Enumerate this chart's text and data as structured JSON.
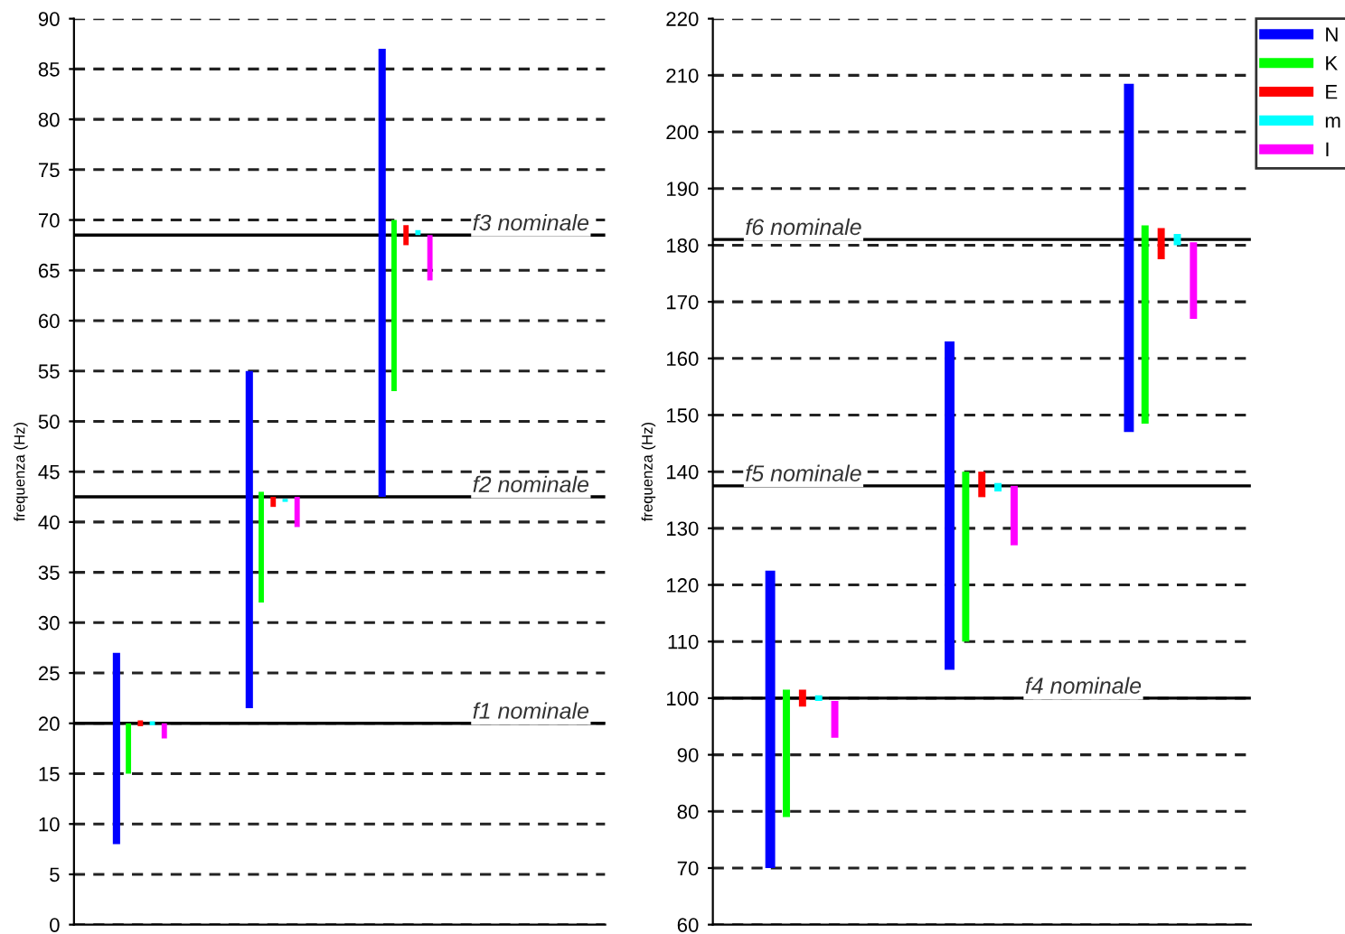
{
  "chart_data": [
    {
      "type": "bar",
      "ylabel": "frequenza (Hz)",
      "categories": [
        null,
        null,
        null,
        null
      ],
      "ylim": [
        0,
        90
      ],
      "yticks": [
        0,
        5,
        10,
        15,
        20,
        25,
        30,
        35,
        40,
        45,
        50,
        55,
        60,
        65,
        70,
        75,
        80,
        85,
        90
      ],
      "grid": "y",
      "tick_labels": "y",
      "legend": false,
      "series": [
        {
          "color": "#0000ff",
          "base": [
            8,
            21.5,
            42.5,
            null
          ],
          "values": [
            19,
            33.5,
            44.5,
            null
          ]
        },
        {
          "color": "#00ff00",
          "base": [
            15,
            32,
            53,
            null
          ],
          "values": [
            5,
            11,
            17,
            null
          ]
        },
        {
          "color": "#ff0000",
          "base": [
            19.7,
            41.5,
            67.5,
            null
          ],
          "values": [
            0.6,
            1,
            2,
            null
          ]
        },
        {
          "color": "#00ffff",
          "base": [
            19.8,
            42,
            68.5,
            null
          ],
          "values": [
            0.4,
            0.3,
            0.5,
            null
          ]
        },
        {
          "color": "#ff00ff",
          "base": [
            18.5,
            39.5,
            64,
            null
          ],
          "values": [
            1.5,
            3,
            4.5,
            null
          ]
        }
      ],
      "ref_lines": [
        {
          "axis": "y",
          "value": 20,
          "label": "f1 nominale",
          "color": "#000000"
        },
        {
          "axis": "y",
          "value": 42.5,
          "label": "f2 nominale",
          "color": "#000000"
        },
        {
          "axis": "y",
          "value": 68.5,
          "label": "f3 nominale",
          "color": "#000000"
        }
      ]
    },
    {
      "type": "bar",
      "ylabel": "frequenza (Hz)",
      "categories": [
        null,
        null,
        null
      ],
      "ylim": [
        60,
        220
      ],
      "yticks": [
        60,
        70,
        80,
        90,
        100,
        110,
        120,
        130,
        140,
        150,
        160,
        170,
        180,
        190,
        200,
        210,
        220
      ],
      "grid": "y",
      "tick_labels": "y",
      "legend": "top right",
      "series": [
        {
          "name": "N",
          "color": "#0000ff",
          "base": [
            70,
            105,
            147
          ],
          "values": [
            52.5,
            58,
            61.5
          ]
        },
        {
          "name": "K",
          "color": "#00ff00",
          "base": [
            79,
            110,
            148.5
          ],
          "values": [
            22.5,
            30,
            35
          ]
        },
        {
          "name": "E",
          "color": "#ff0000",
          "base": [
            98.5,
            135.5,
            177.5
          ],
          "values": [
            3,
            4.5,
            5.5
          ]
        },
        {
          "name": "m",
          "color": "#00ffff",
          "base": [
            99.5,
            136.5,
            180
          ],
          "values": [
            1,
            1.5,
            2
          ]
        },
        {
          "name": "I",
          "color": "#ff00ff",
          "base": [
            93,
            127,
            167
          ],
          "values": [
            6.5,
            10.5,
            13.5
          ]
        }
      ],
      "ref_lines": [
        {
          "axis": "y",
          "value": 100,
          "label": "f4 nominale",
          "color": "#000000"
        },
        {
          "axis": "y",
          "value": 137.5,
          "label": "f5 nominale",
          "color": "#000000"
        },
        {
          "axis": "y",
          "value": 181,
          "label": "f6 nominale",
          "color": "#000000"
        }
      ]
    }
  ]
}
